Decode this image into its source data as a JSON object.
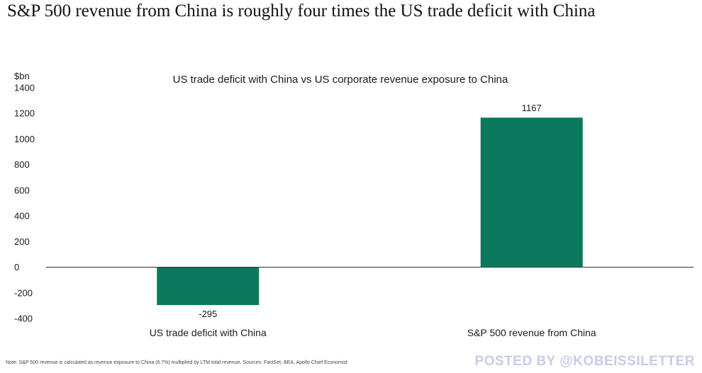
{
  "headline": "S&P 500 revenue from China is roughly four times the US trade deficit with China",
  "chart_data": {
    "type": "bar",
    "title": "US trade deficit with China vs US corporate revenue exposure to China",
    "ylabel": "$bn",
    "ylim": [
      -400,
      1400
    ],
    "yticks": [
      -400,
      -200,
      0,
      200,
      400,
      600,
      800,
      1000,
      1200,
      1400
    ],
    "categories": [
      "US trade deficit with China",
      "S&P 500 revenue from China"
    ],
    "values": [
      -295,
      1167
    ],
    "data_labels": [
      "-295",
      "1167"
    ],
    "bar_color": "#0b7a5c",
    "grid": false,
    "legend": "none"
  },
  "note": "Note: S&P 500 revenue is calculated as revenue exposure to China (6.7%) multiplied by LTM total revenue. Sources: FactSet, BEA, Apollo Chief Economist",
  "watermark": "POSTED BY @KOBEISSILETTER"
}
